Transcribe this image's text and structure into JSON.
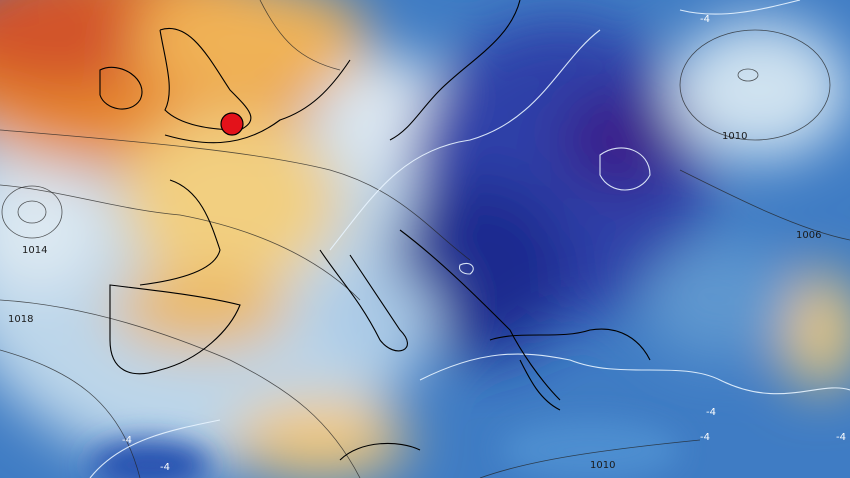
{
  "map": {
    "isobar_labels": [
      "1014",
      "1018",
      "1010",
      "1006",
      "1010"
    ],
    "temperature_labels": [
      "-4",
      "-4",
      "-4",
      "-4",
      "-4",
      "-4"
    ]
  }
}
